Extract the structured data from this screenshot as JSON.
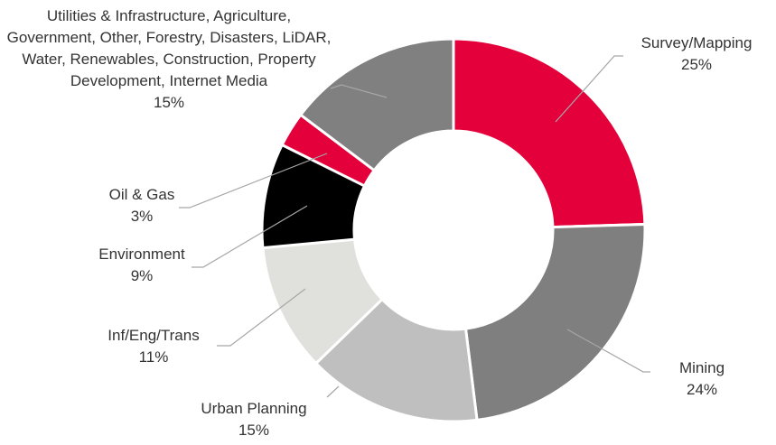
{
  "chart_data": {
    "type": "donut",
    "categories": [
      "Survey/Mapping",
      "Mining",
      "Urban Planning",
      "Inf/Eng/Trans",
      "Environment",
      "Oil & Gas",
      "Utilities & Infrastructure, Agriculture, Government, Other, Forestry, Disasters, LiDAR, Water, Renewables, Construction, Property Development, Internet Media"
    ],
    "values": [
      25,
      24,
      15,
      11,
      9,
      3,
      15
    ],
    "value_labels": [
      "25%",
      "24%",
      "15%",
      "11%",
      "9%",
      "3%",
      "15%"
    ],
    "colors": [
      "#e4003a",
      "#7f7f7f",
      "#bfbfbf",
      "#e0e0dc",
      "#000000",
      "#e4003a",
      "#808080"
    ]
  }
}
